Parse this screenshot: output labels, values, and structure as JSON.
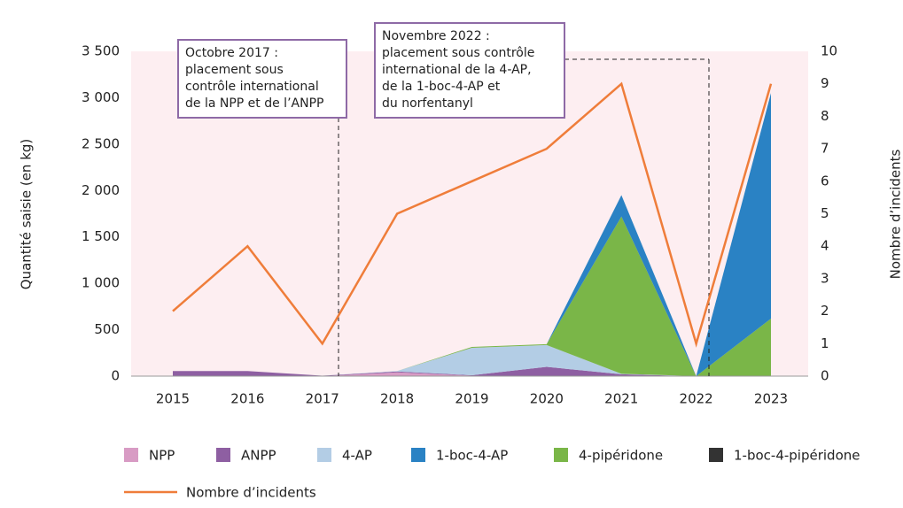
{
  "chart_data": {
    "type": "stacked_area_line",
    "y_label": "Quantité saisie (en kg)",
    "y2_label": "Nombre d’incidents",
    "categories": [
      "2015",
      "2016",
      "2017",
      "2018",
      "2019",
      "2020",
      "2021",
      "2022",
      "2023"
    ],
    "series": [
      {
        "name": "NPP",
        "color": "#d89bc4",
        "values": [
          5,
          5,
          0,
          40,
          5,
          5,
          0,
          0,
          0
        ]
      },
      {
        "name": "ANPP",
        "color": "#8e5fa2",
        "values": [
          50,
          50,
          5,
          10,
          5,
          95,
          20,
          0,
          0
        ]
      },
      {
        "name": "4-AP",
        "color": "#b3cde5",
        "values": [
          0,
          0,
          0,
          5,
          295,
          235,
          5,
          0,
          0
        ]
      },
      {
        "name": "1-boc-4-AP",
        "color": "#2a82c4",
        "values": [
          0,
          0,
          0,
          0,
          0,
          0,
          230,
          0,
          2430
        ]
      },
      {
        "name": "4-pipéridone",
        "color": "#7ab648",
        "values": [
          0,
          0,
          0,
          0,
          10,
          10,
          1695,
          0,
          620
        ]
      },
      {
        "name": "1-boc-4-pipéridone",
        "color": "#333333",
        "values": [
          0,
          0,
          0,
          0,
          0,
          0,
          0,
          0,
          0
        ]
      },
      {
        "name": "Nombre d’incidents",
        "color": "#ef7d3a",
        "type": "line",
        "axis": "y2",
        "values": [
          2,
          4,
          1,
          5,
          6,
          7,
          9,
          1,
          9
        ]
      }
    ],
    "ylim": [
      0,
      3500
    ],
    "yticks": [
      0,
      500,
      {
        "value": 1000,
        "label": "1 000"
      },
      {
        "value": 1500,
        "label": "1 500"
      },
      {
        "value": 2000,
        "label": "2 000"
      },
      {
        "value": 2500,
        "label": "2 500"
      },
      {
        "value": 3000,
        "label": "3 000"
      },
      {
        "value": 3500,
        "label": "3 500"
      }
    ],
    "y2lim": [
      0,
      10
    ],
    "y2ticks": [
      0,
      1,
      2,
      3,
      4,
      5,
      6,
      7,
      8,
      9,
      10
    ],
    "annotations": [
      {
        "lines": [
          "Octobre 2017 :",
          "placement sous",
          "contrôle international",
          "de la NPP et de l’ANPP"
        ]
      },
      {
        "lines": [
          "Novembre 2022 :",
          "placement sous contrôle",
          "international de la 4-AP,",
          "de la 1-boc-4-AP et",
          "du norfentanyl"
        ]
      }
    ]
  }
}
